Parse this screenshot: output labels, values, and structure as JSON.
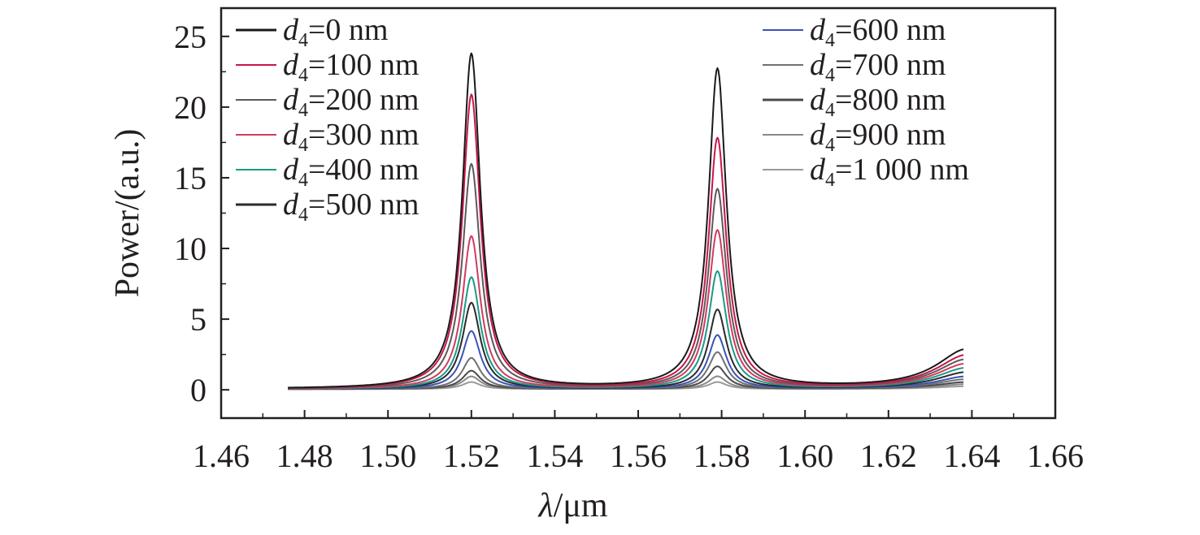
{
  "chart_data": {
    "type": "line",
    "xlabel": {
      "symbol": "λ",
      "unit": "/μm"
    },
    "ylabel": "Power/(a.u.)",
    "xlim": [
      1.46,
      1.66
    ],
    "ylim": [
      -2,
      27
    ],
    "xticks": [
      "1.46",
      "1.48",
      "1.50",
      "1.52",
      "1.54",
      "1.56",
      "1.58",
      "1.60",
      "1.62",
      "1.64",
      "1.66"
    ],
    "yticks": [
      "0",
      "5",
      "10",
      "15",
      "20",
      "25"
    ],
    "grid": false,
    "legend_position": "top, two columns",
    "x_range": [
      1.476,
      1.638
    ],
    "peaks": [
      1.52,
      1.579
    ],
    "series": [
      {
        "name": "d4=0 nm",
        "legend_var": "d",
        "legend_sub": "4",
        "legend_value": "=0 nm",
        "color": "#1a1a1a",
        "peak_values": [
          23.7,
          22.6
        ],
        "edge_value": 2.8
      },
      {
        "name": "d4=100 nm",
        "legend_var": "d",
        "legend_sub": "4",
        "legend_value": "=100 nm",
        "color": "#c8174a",
        "peak_values": [
          20.8,
          17.7
        ],
        "edge_value": 2.4
      },
      {
        "name": "d4=200 nm",
        "legend_var": "d",
        "legend_sub": "4",
        "legend_value": "=200 nm",
        "color": "#5a5a5a",
        "peak_values": [
          15.9,
          14.1
        ],
        "edge_value": 2.1
      },
      {
        "name": "d4=300 nm",
        "legend_var": "d",
        "legend_sub": "4",
        "legend_value": "=300 nm",
        "color": "#d13b5f",
        "peak_values": [
          10.8,
          11.2
        ],
        "edge_value": 1.8
      },
      {
        "name": "d4=400 nm",
        "legend_var": "d",
        "legend_sub": "4",
        "legend_value": "=400 nm",
        "color": "#1a9a88",
        "peak_values": [
          7.9,
          8.3
        ],
        "edge_value": 1.5
      },
      {
        "name": "d4=500 nm",
        "legend_var": "d",
        "legend_sub": "4",
        "legend_value": "=500 nm",
        "color": "#2a2a2a",
        "peak_values": [
          6.1,
          5.6
        ],
        "edge_value": 1.2
      },
      {
        "name": "d4=600 nm",
        "legend_var": "d",
        "legend_sub": "4",
        "legend_value": "=600 nm",
        "color": "#3a52b8",
        "peak_values": [
          4.1,
          3.8
        ],
        "edge_value": 0.9
      },
      {
        "name": "d4=700 nm",
        "legend_var": "d",
        "legend_sub": "4",
        "legend_value": "=700 nm",
        "color": "#707070",
        "peak_values": [
          2.2,
          2.6
        ],
        "edge_value": 0.7
      },
      {
        "name": "d4=800 nm",
        "legend_var": "d",
        "legend_sub": "4",
        "legend_value": "=800 nm",
        "color": "#4a4a4a",
        "peak_values": [
          1.3,
          1.6
        ],
        "edge_value": 0.5
      },
      {
        "name": "d4=900 nm",
        "legend_var": "d",
        "legend_sub": "4",
        "legend_value": "=900 nm",
        "color": "#8a8a8a",
        "peak_values": [
          0.9,
          0.9
        ],
        "edge_value": 0.35
      },
      {
        "name": "d4=1 000 nm",
        "legend_var": "d",
        "legend_sub": "4",
        "legend_value": "=1 000 nm",
        "color": "#9a9a9a",
        "peak_values": [
          0.5,
          0.5
        ],
        "edge_value": 0.2
      }
    ]
  }
}
